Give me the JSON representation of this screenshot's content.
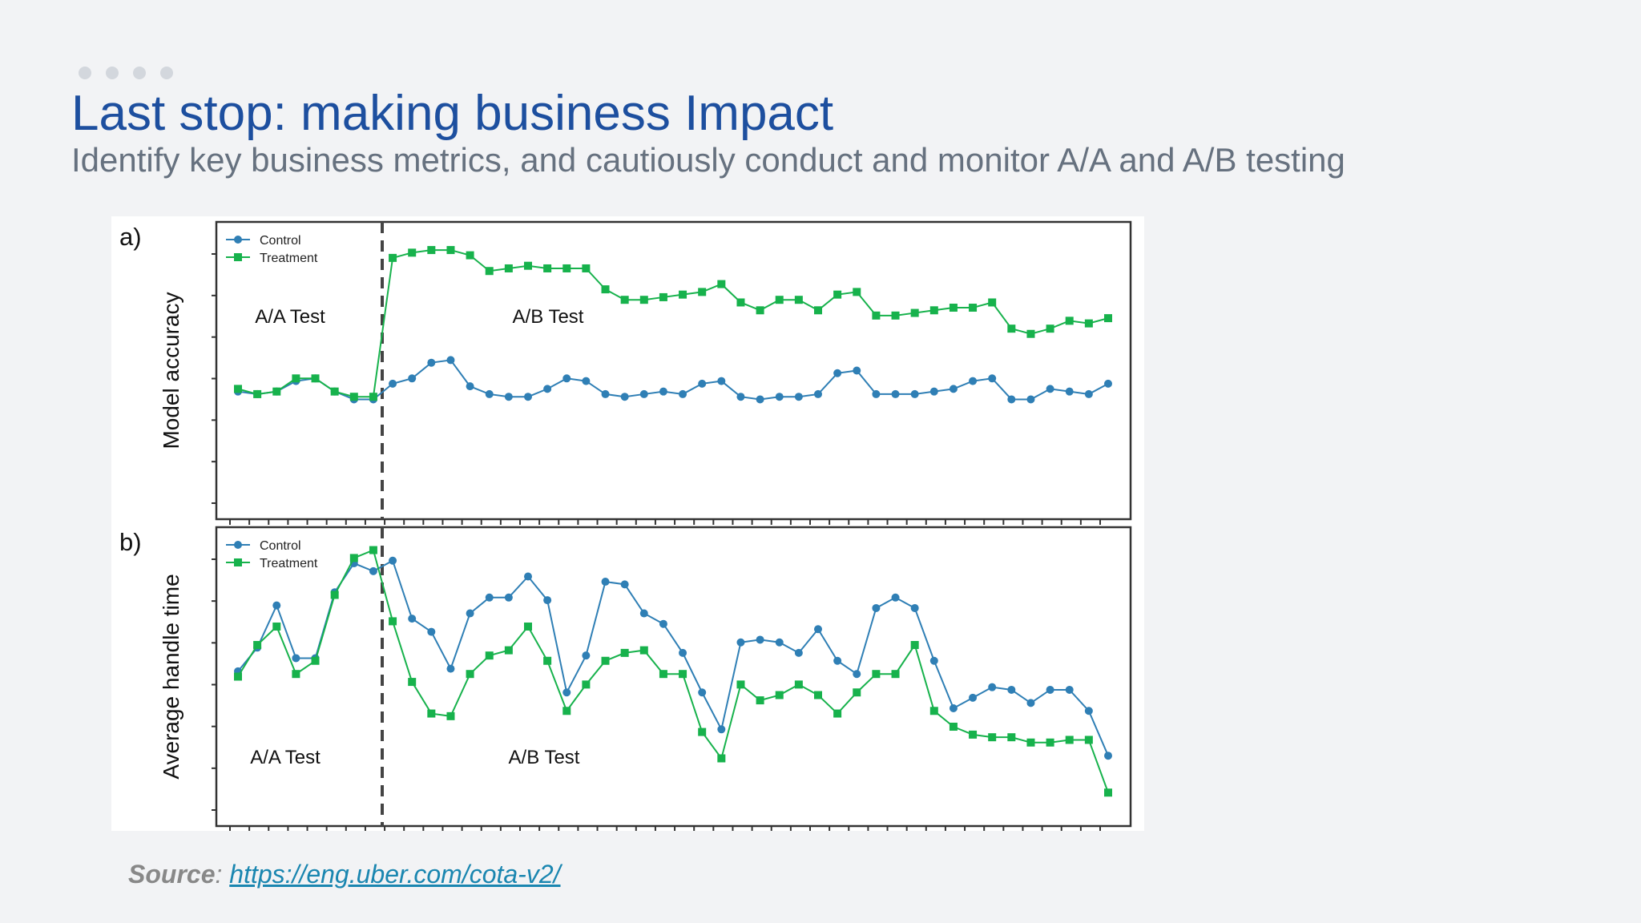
{
  "slide": {
    "title": "Last stop: making business Impact",
    "subtitle": "Identify key business metrics, and cautiously conduct and monitor A/A and A/B testing",
    "source_label": "Source",
    "source_sep": ":",
    "source_link": "https://eng.uber.com/cota-v2/"
  },
  "colors": {
    "control": "#2f7fb5",
    "treatment": "#17b24c",
    "title": "#1d4f9f",
    "subtitle": "#66717f"
  },
  "chart_data": [
    {
      "type": "line",
      "panel_label": "a)",
      "ylabel": "Model accuracy",
      "xlabel": "",
      "ylim": [
        0,
        100
      ],
      "grid": false,
      "legend_position": "top-left",
      "split_index": 7,
      "regions": [
        "A/A Test",
        "A/B Test"
      ],
      "series": [
        {
          "name": "Control",
          "marker": "circle",
          "values": [
            42,
            41,
            42,
            46,
            47,
            42,
            39,
            39,
            45,
            47,
            53,
            54,
            44,
            41,
            40,
            40,
            43,
            47,
            46,
            41,
            40,
            41,
            42,
            41,
            45,
            46,
            40,
            39,
            40,
            40,
            41,
            49,
            50,
            41,
            41,
            41,
            42,
            43,
            46,
            47,
            39,
            39,
            43,
            42,
            41,
            45
          ]
        },
        {
          "name": "Treatment",
          "marker": "square",
          "values": [
            43,
            41,
            42,
            47,
            47,
            42,
            40,
            40,
            93,
            95,
            96,
            96,
            94,
            88,
            89,
            90,
            89,
            89,
            89,
            81,
            77,
            77,
            78,
            79,
            80,
            83,
            76,
            73,
            77,
            77,
            73,
            79,
            80,
            71,
            71,
            72,
            73,
            74,
            74,
            76,
            66,
            64,
            66,
            69,
            68,
            70
          ]
        }
      ]
    },
    {
      "type": "line",
      "panel_label": "b)",
      "ylabel": "Average handle time",
      "xlabel": "",
      "ylim": [
        0,
        100
      ],
      "grid": false,
      "legend_position": "top-left",
      "split_index": 7,
      "regions": [
        "A/A Test",
        "A/B Test"
      ],
      "series": [
        {
          "name": "Control",
          "marker": "circle",
          "values": [
            52,
            61,
            77,
            57,
            57,
            82,
            93,
            90,
            94,
            72,
            67,
            53,
            74,
            80,
            80,
            88,
            79,
            44,
            58,
            86,
            85,
            74,
            70,
            59,
            44,
            30,
            63,
            64,
            63,
            59,
            68,
            56,
            51,
            76,
            80,
            76,
            56,
            38,
            42,
            46,
            45,
            40,
            45,
            45,
            37,
            20
          ]
        },
        {
          "name": "Treatment",
          "marker": "square",
          "values": [
            50,
            62,
            69,
            51,
            56,
            81,
            95,
            98,
            71,
            48,
            36,
            35,
            51,
            58,
            60,
            69,
            56,
            37,
            47,
            56,
            59,
            60,
            51,
            51,
            29,
            19,
            47,
            41,
            43,
            47,
            43,
            36,
            44,
            51,
            51,
            62,
            37,
            31,
            28,
            27,
            27,
            25,
            25,
            26,
            26,
            6
          ]
        }
      ]
    }
  ]
}
